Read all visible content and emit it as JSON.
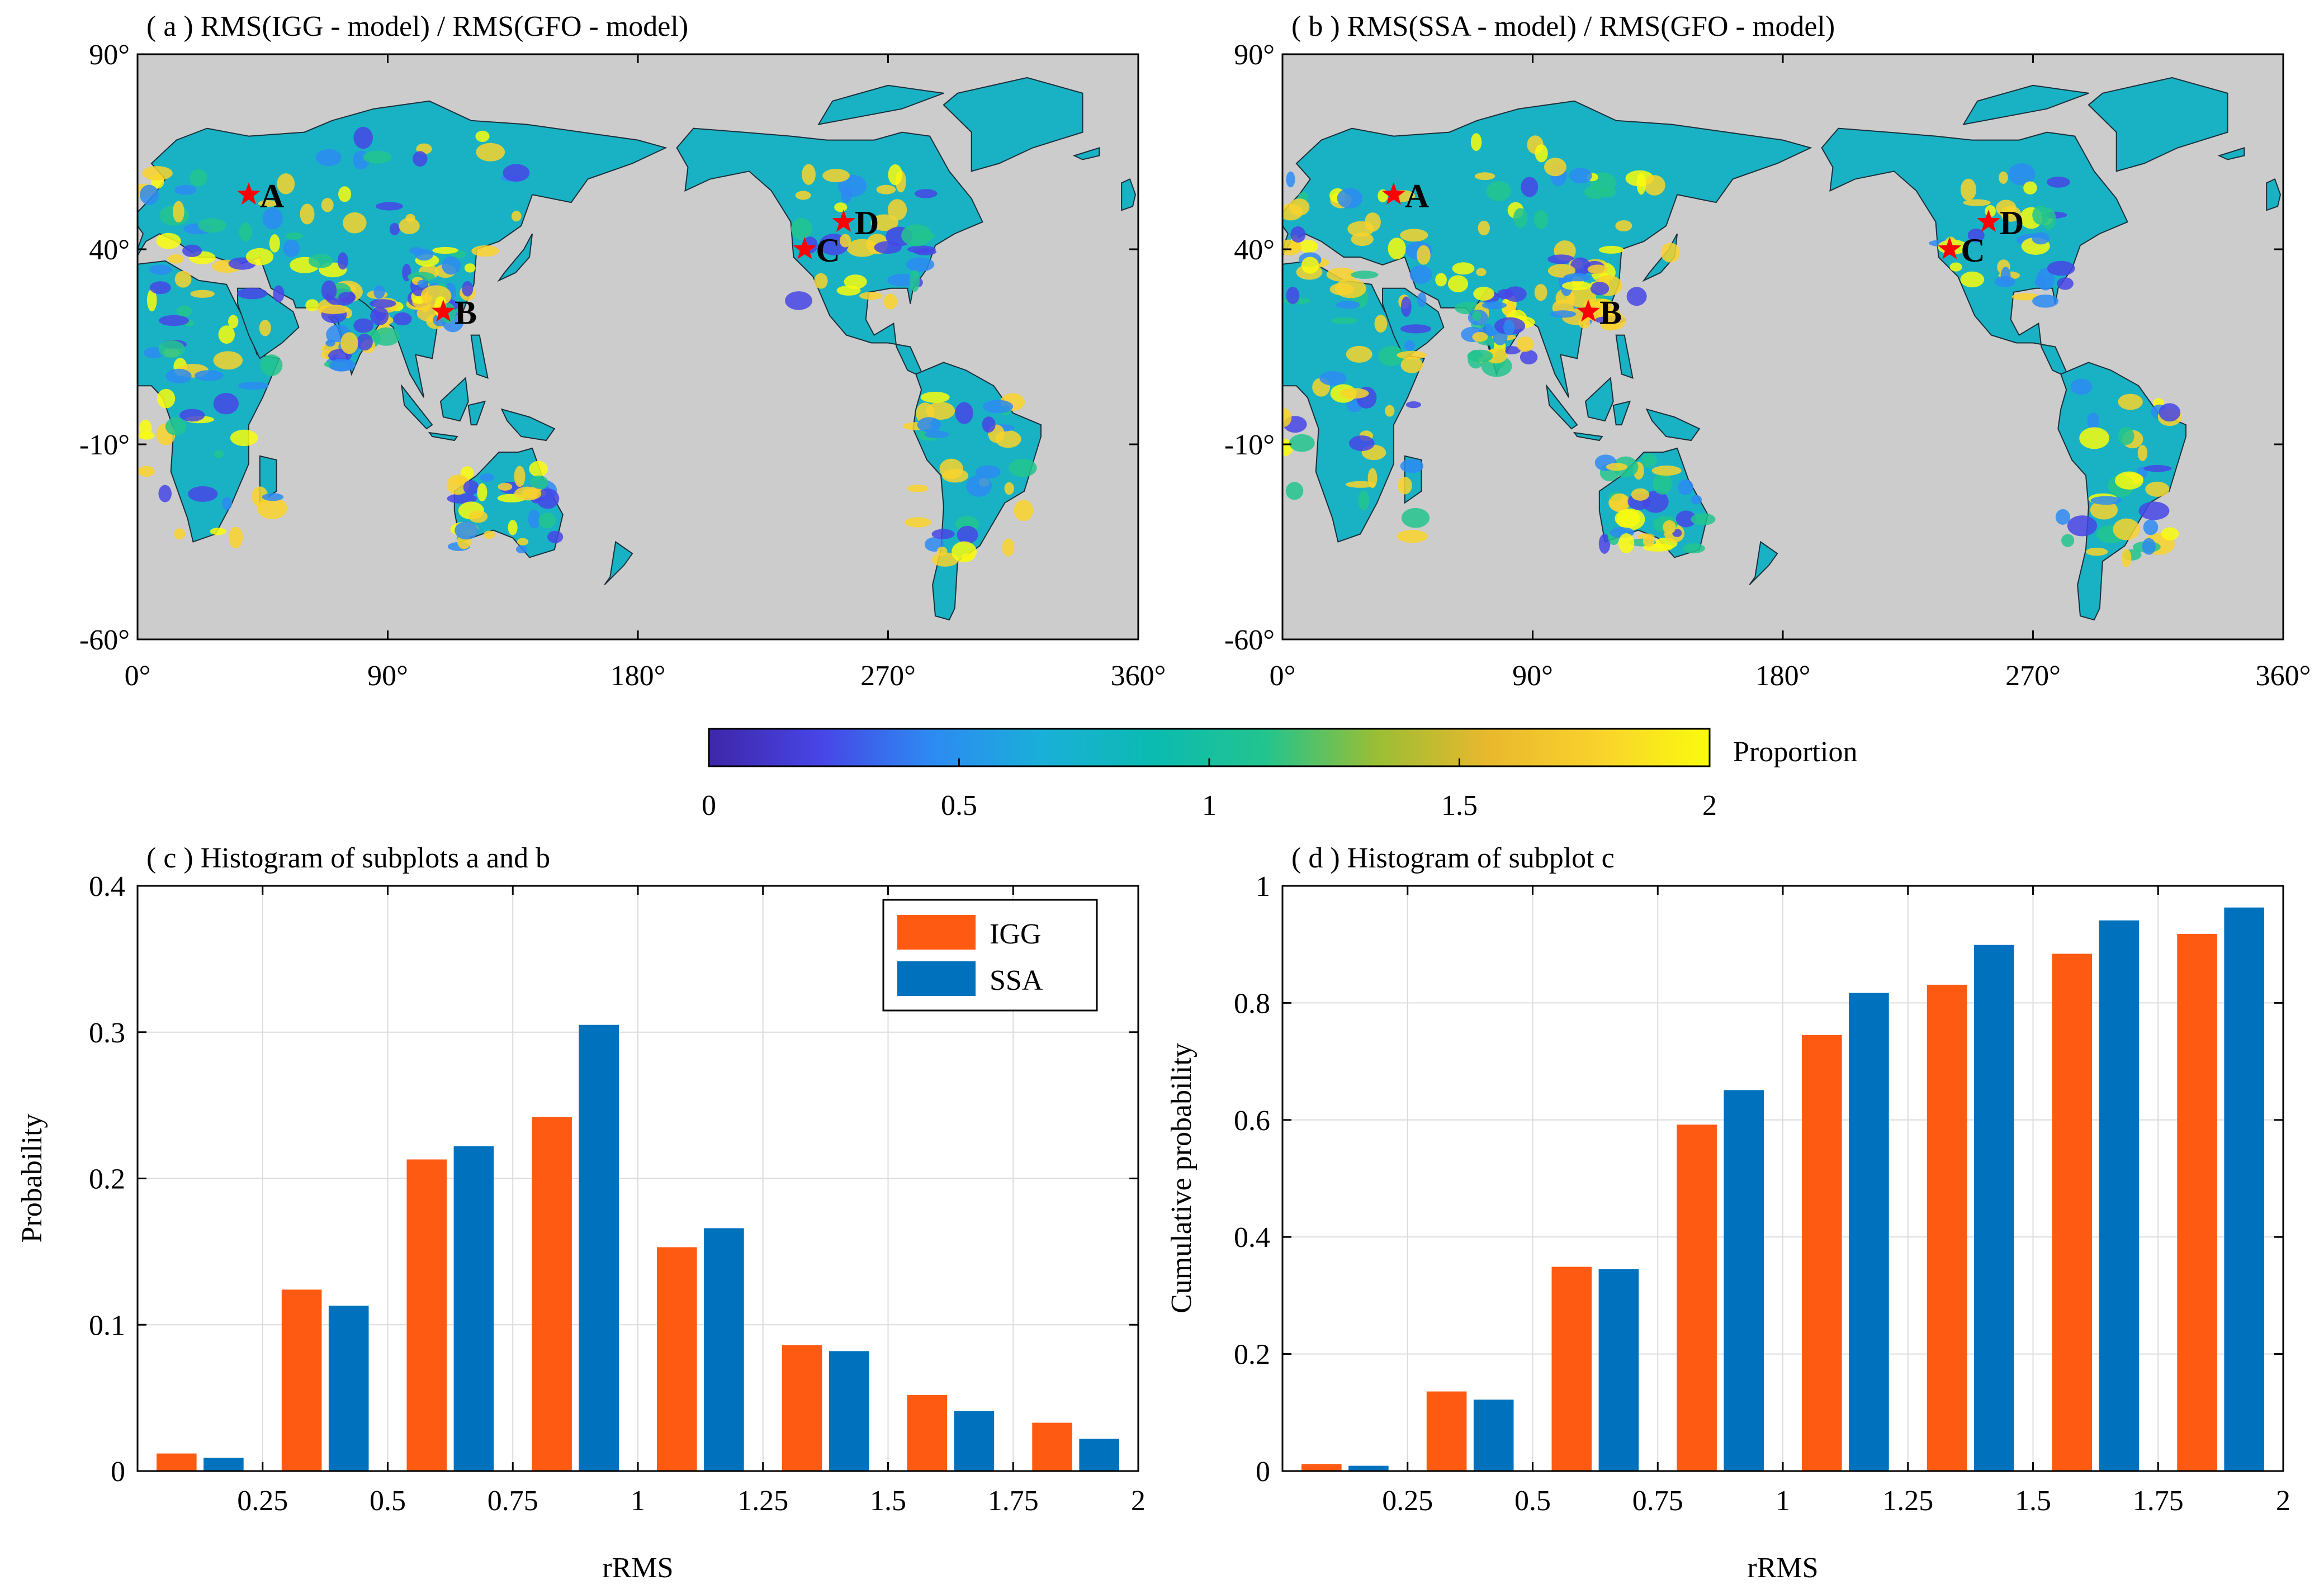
{
  "colors": {
    "igg": "#FF5A12",
    "ssa": "#0072BD",
    "land_grey": "#CCCCCC",
    "marker": "#FF0000",
    "colormap": [
      "#3E26A8",
      "#4745E6",
      "#2D8AF2",
      "#1AAFD9",
      "#0BBBB1",
      "#22C48E",
      "#9ABE34",
      "#E9B82D",
      "#F9D22C",
      "#F9FB0E"
    ]
  },
  "map_a": {
    "title": "( a ) RMS(IGG - model) / RMS(GFO - model)",
    "lat_ticks": [
      "90°",
      "40°",
      "-10°",
      "-60°"
    ],
    "lon_ticks": [
      "0°",
      "90°",
      "180°",
      "270°",
      "360°"
    ],
    "markers": [
      {
        "label": "A",
        "lon": 40,
        "lat": 54
      },
      {
        "label": "B",
        "lon": 110,
        "lat": 24
      },
      {
        "label": "C",
        "lon": 240,
        "lat": 40
      },
      {
        "label": "D",
        "lon": 254,
        "lat": 47
      }
    ]
  },
  "map_b": {
    "title": "( b ) RMS(SSA - model) / RMS(GFO - model)",
    "lat_ticks": [
      "90°",
      "40°",
      "-10°",
      "-60°"
    ],
    "lon_ticks": [
      "0°",
      "90°",
      "180°",
      "270°",
      "360°"
    ],
    "markers": [
      {
        "label": "A",
        "lon": 40,
        "lat": 54
      },
      {
        "label": "B",
        "lon": 110,
        "lat": 24
      },
      {
        "label": "C",
        "lon": 240,
        "lat": 40
      },
      {
        "label": "D",
        "lon": 254,
        "lat": 47
      }
    ]
  },
  "colorbar": {
    "label": "Proportion",
    "range": [
      0,
      2
    ],
    "ticks": [
      "0",
      "0.5",
      "1",
      "1.5",
      "2"
    ]
  },
  "chart_data": [
    {
      "type": "bar",
      "title": "( c ) Histogram of subplots a and b",
      "xlabel": "rRMS",
      "ylabel": "Probability",
      "xlim": [
        0,
        2
      ],
      "ylim": [
        0,
        0.4
      ],
      "x_ticks": [
        "0.25",
        "0.5",
        "0.75",
        "1",
        "1.25",
        "1.5",
        "1.75",
        "2"
      ],
      "y_ticks": [
        "0",
        "0.1",
        "0.2",
        "0.3",
        "0.4"
      ],
      "bin_centers": [
        0.125,
        0.375,
        0.625,
        0.875,
        1.125,
        1.375,
        1.625,
        1.875
      ],
      "series": [
        {
          "name": "IGG",
          "values": [
            0.012,
            0.124,
            0.213,
            0.242,
            0.153,
            0.086,
            0.052,
            0.033
          ]
        },
        {
          "name": "SSA",
          "values": [
            0.009,
            0.113,
            0.222,
            0.305,
            0.166,
            0.082,
            0.041,
            0.022
          ]
        }
      ],
      "legend": "top-right",
      "grid": true
    },
    {
      "type": "bar",
      "title": "( d ) Histogram of subplot c",
      "xlabel": "rRMS",
      "ylabel": "Cumulative probability",
      "xlim": [
        0,
        2
      ],
      "ylim": [
        0,
        1
      ],
      "x_ticks": [
        "0.25",
        "0.5",
        "0.75",
        "1",
        "1.25",
        "1.5",
        "1.75",
        "2"
      ],
      "y_ticks": [
        "0",
        "0.2",
        "0.4",
        "0.6",
        "0.8",
        "1"
      ],
      "bin_centers": [
        0.125,
        0.375,
        0.625,
        0.875,
        1.125,
        1.375,
        1.625,
        1.875
      ],
      "series": [
        {
          "name": "IGG",
          "values": [
            0.012,
            0.136,
            0.349,
            0.592,
            0.745,
            0.831,
            0.884,
            0.918
          ]
        },
        {
          "name": "SSA",
          "values": [
            0.009,
            0.122,
            0.345,
            0.651,
            0.817,
            0.899,
            0.941,
            0.963
          ]
        }
      ],
      "legend": "none",
      "grid": true
    }
  ]
}
